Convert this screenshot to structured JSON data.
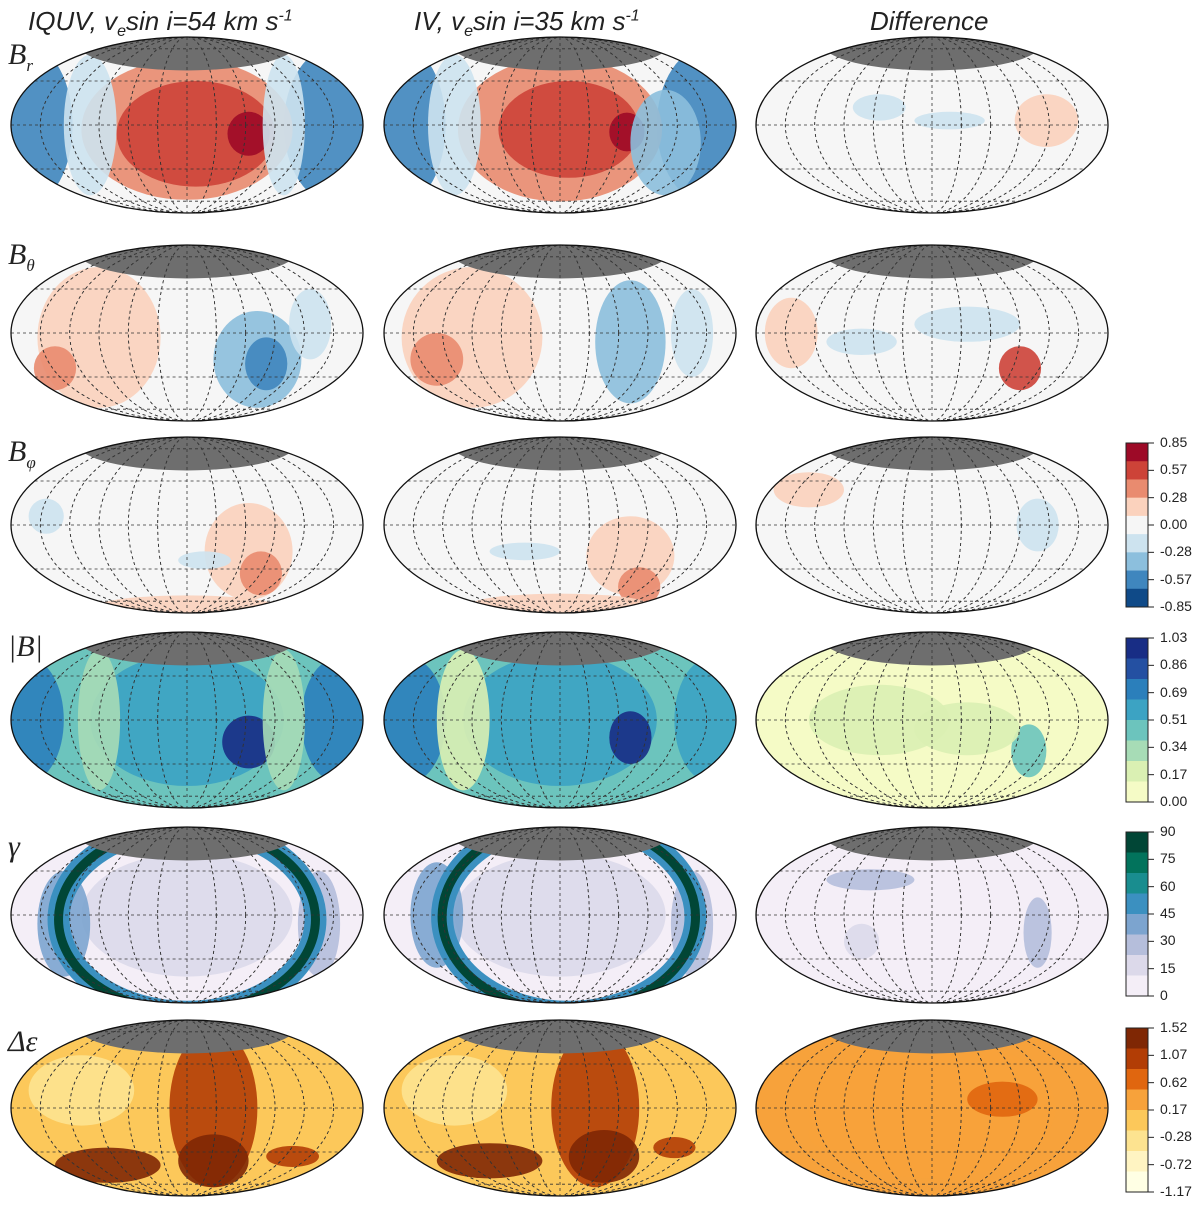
{
  "column_titles": [
    {
      "pre": "IQUV, v",
      "sub": "e",
      "mid": "sin i=54 km s",
      "sup": "-1"
    },
    {
      "pre": "IV, v",
      "sub": "e",
      "mid": "sin i=35 km s",
      "sup": "-1"
    },
    {
      "pre": "Difference",
      "sub": "",
      "mid": "",
      "sup": ""
    }
  ],
  "rows": [
    {
      "id": "Br",
      "label_main": "B",
      "label_sub": "r",
      "colormap": "RdBu"
    },
    {
      "id": "Btheta",
      "label_main": "B",
      "label_sub": "θ",
      "colormap": "RdBu"
    },
    {
      "id": "Bphi",
      "label_main": "B",
      "label_sub": "φ",
      "colormap": "RdBu"
    },
    {
      "id": "Babs",
      "label_main": "|B|",
      "label_sub": "",
      "colormap": "YlGnBu"
    },
    {
      "id": "gamma",
      "label_main": "γ",
      "label_sub": "",
      "colormap": "PuBuGn"
    },
    {
      "id": "deps",
      "label_main": "Δε",
      "label_sub": "",
      "colormap": "YlOrBr"
    }
  ],
  "colorbars": [
    {
      "for": "B components",
      "ticks": [
        "0.85",
        "0.57",
        "0.28",
        "0.00",
        "-0.28",
        "-0.57",
        "-0.85"
      ],
      "colors": [
        "#9d0a27",
        "#cd4338",
        "#e98b6f",
        "#fbd2bd",
        "#f6f6f6",
        "#cde3ef",
        "#8cbfdd",
        "#3f86be",
        "#0f4a88"
      ]
    },
    {
      "for": "|B|",
      "ticks": [
        "1.03",
        "0.86",
        "0.69",
        "0.51",
        "0.34",
        "0.17",
        "0.00"
      ],
      "colors": [
        "#182d85",
        "#2450a2",
        "#2b7fbb",
        "#3ca3c3",
        "#6cc4bd",
        "#a7dcb6",
        "#daf0b3",
        "#f5fbc6"
      ]
    },
    {
      "for": "gamma",
      "ticks": [
        "90",
        "75",
        "60",
        "45",
        "30",
        "15",
        "0"
      ],
      "colors": [
        "#014636",
        "#02735c",
        "#198d8f",
        "#3b90c0",
        "#7ca4cf",
        "#b5bedb",
        "#dcd9ea",
        "#f4eef7"
      ]
    },
    {
      "for": "delta epsilon",
      "ticks": [
        "1.52",
        "1.07",
        "0.62",
        "0.17",
        "-0.28",
        "-0.72",
        "-1.17"
      ],
      "colors": [
        "#7f2704",
        "#b23d05",
        "#e0660f",
        "#f7a23b",
        "#fcc85a",
        "#fde390",
        "#fff4c2",
        "#ffffe4"
      ]
    }
  ]
}
